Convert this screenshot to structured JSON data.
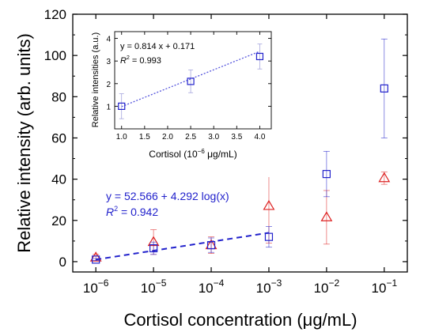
{
  "chart_data": [
    {
      "type": "scatter",
      "xlabel": "Cortisol concentration (μg/mL)",
      "ylabel": "Relative intensity (arb. units)",
      "x_scale": "log",
      "x_ticks": [
        {
          "value": 1e-06,
          "base": "10",
          "exp": "−6"
        },
        {
          "value": 1e-05,
          "base": "10",
          "exp": "−5"
        },
        {
          "value": 0.0001,
          "base": "10",
          "exp": "−4"
        },
        {
          "value": 0.001,
          "base": "10",
          "exp": "−3"
        },
        {
          "value": 0.01,
          "base": "10",
          "exp": "−2"
        },
        {
          "value": 0.1,
          "base": "10",
          "exp": "−1"
        }
      ],
      "y_ticks": [
        0,
        20,
        40,
        60,
        80,
        100,
        120
      ],
      "xlim_log10": [
        -6.4,
        -0.6
      ],
      "ylim": [
        -5,
        120
      ],
      "series": [
        {
          "marker": "square",
          "color": "#2222cc",
          "x": [
            1e-06,
            1e-05,
            0.0001,
            0.001,
            0.01,
            0.1
          ],
          "y": [
            1,
            6.5,
            8,
            12,
            42.5,
            84
          ],
          "err": [
            0.5,
            3,
            3.5,
            5,
            11,
            24
          ]
        },
        {
          "marker": "triangle",
          "color": "#dd2222",
          "x": [
            1e-06,
            1e-05,
            0.0001,
            0.001,
            0.01,
            0.1
          ],
          "y": [
            2,
            9.5,
            8,
            27,
            21.5,
            40.5
          ],
          "err": [
            1.5,
            6,
            4,
            18,
            13,
            3
          ]
        }
      ],
      "fit": {
        "color": "#2222cc",
        "style": "dashed",
        "x_from": 1e-06,
        "x_to": 0.001,
        "y_from": 1,
        "y_to": 14
      },
      "annotation": {
        "line1": "y = 52.566 + 4.292 log(x)",
        "line2_prefix": "R",
        "line2_sup": "2",
        "line2_suffix": " = 0.942",
        "color": "#2222cc"
      }
    },
    {
      "type": "scatter",
      "title": "",
      "xlabel_prefix": "Cortisol (10",
      "xlabel_sup": "−6",
      "xlabel_suffix": " μg/mL)",
      "ylabel": "Relative intensities (a.u.)",
      "x_ticks": [
        "1.0",
        "1.5",
        "2.0",
        "2.5",
        "3.0",
        "3.5",
        "4.0"
      ],
      "x_tick_values": [
        1.0,
        1.5,
        2.0,
        2.5,
        3.0,
        3.5,
        4.0
      ],
      "y_ticks": [
        "1",
        "2",
        "3",
        "4"
      ],
      "y_tick_values": [
        1,
        2,
        3,
        4
      ],
      "xlim": [
        0.85,
        4.25
      ],
      "ylim": [
        0,
        4.3
      ],
      "series": [
        {
          "marker": "square",
          "color": "#2222cc",
          "x": [
            1.0,
            2.5,
            4.0
          ],
          "y": [
            1.0,
            2.1,
            3.2
          ],
          "err": [
            0.55,
            0.5,
            0.55
          ]
        }
      ],
      "fit": {
        "slope": 0.814,
        "intercept": 0.171,
        "x_from": 1.0,
        "x_to": 4.0,
        "style": "dotted",
        "color": "#5555dd"
      },
      "annotation": {
        "line1": "y = 0.814 x + 0.171",
        "line2_prefix": "R",
        "line2_sup": "2",
        "line2_suffix": " = 0.993"
      }
    }
  ]
}
